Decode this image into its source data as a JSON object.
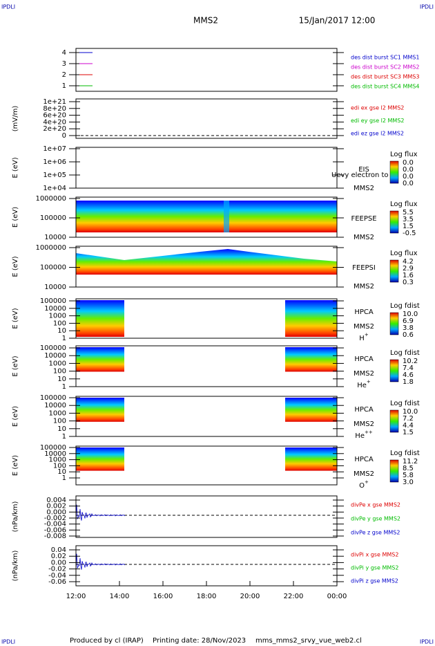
{
  "header": {
    "corner_left": "IPDLI",
    "corner_right": "IPDLI",
    "title": "MMS2",
    "date": "15/Jan/2017 12:00"
  },
  "panels": [
    {
      "yticks": [
        "4",
        "3",
        "2",
        "1"
      ],
      "legend": [
        {
          "text": "des dist burst SC1 MMS1",
          "color": "#0000cc"
        },
        {
          "text": "des dist burst SC2 MMS2",
          "color": "#cc00cc"
        },
        {
          "text": "des dist burst SC3 MMS3",
          "color": "#dd0000"
        },
        {
          "text": "des dist burst SC4 MMS4",
          "color": "#00bb00"
        }
      ]
    },
    {
      "ylabel": "(mV/m)",
      "yticks": [
        "1e+21",
        "8e+20",
        "6e+20",
        "4e+20",
        "2e+20",
        "0"
      ],
      "legend": [
        {
          "text": "edi ex gse l2 MMS2",
          "color": "#dd0000"
        },
        {
          "text": "edi ey gse l2 MMS2",
          "color": "#00bb00"
        },
        {
          "text": "edi ez gse l2 MMS2",
          "color": "#0000cc"
        }
      ]
    },
    {
      "ylabel": "E (eV)",
      "yticks": [
        "1e+07",
        "1e+06",
        "1e+05",
        "1e+04"
      ],
      "side": [
        "EIS",
        "MMS2"
      ],
      "overlay": "Uevy electron to",
      "cbar": {
        "title": "Log flux",
        "ticks": [
          "0.0",
          "0.0",
          "0.0",
          "0.0"
        ]
      }
    },
    {
      "ylabel": "E (eV)",
      "yticks": [
        "1000000",
        "100000",
        "10000"
      ],
      "side": [
        "FEEPSE",
        "MMS2"
      ],
      "cbar": {
        "title": "Log flux",
        "ticks": [
          "5.5",
          "3.5",
          "1.5",
          "-0.5"
        ]
      }
    },
    {
      "ylabel": "E (eV)",
      "yticks": [
        "1000000",
        "100000",
        "10000"
      ],
      "side": [
        "FEEPSI",
        "MMS2"
      ],
      "cbar": {
        "title": "Log flux",
        "ticks": [
          "4.2",
          "2.9",
          "1.6",
          "0.3"
        ]
      }
    },
    {
      "ylabel": "E (eV)",
      "yticks": [
        "100000",
        "10000",
        "1000",
        "100",
        "10",
        "1"
      ],
      "side": [
        "HPCA",
        "MMS2"
      ],
      "species": {
        "base": "H",
        "sup": "+"
      },
      "cbar": {
        "title": "Log fdist",
        "ticks": [
          "10.0",
          "6.9",
          "3.8",
          "0.6"
        ]
      }
    },
    {
      "ylabel": "E (eV)",
      "yticks": [
        "100000",
        "10000",
        "1000",
        "100",
        "10",
        "1"
      ],
      "side": [
        "HPCA",
        "MMS2"
      ],
      "species": {
        "base": "He",
        "sup": "+"
      },
      "cbar": {
        "title": "Log fdist",
        "ticks": [
          "10.2",
          "7.4",
          "4.6",
          "1.8"
        ]
      }
    },
    {
      "ylabel": "E (eV)",
      "yticks": [
        "100000",
        "10000",
        "1000",
        "100",
        "10",
        "1"
      ],
      "side": [
        "HPCA",
        "MMS2"
      ],
      "species": {
        "base": "He",
        "sup": "++"
      },
      "cbar": {
        "title": "Log fdist",
        "ticks": [
          "10.0",
          "7.2",
          "4.4",
          "1.5"
        ]
      }
    },
    {
      "ylabel": "E (eV)",
      "yticks": [
        "100000",
        "10000",
        "1000",
        "100",
        "10",
        "1"
      ],
      "side": [
        "HPCA",
        "MMS2"
      ],
      "species": {
        "base": "O",
        "sup": "+"
      },
      "cbar": {
        "title": "Log fdist",
        "ticks": [
          "11.2",
          "8.5",
          "5.8",
          "3.0"
        ]
      }
    },
    {
      "ylabel": "(nPa/km)",
      "yticks": [
        "0.004",
        "0.002",
        "0.000",
        "-0.002",
        "-0.004",
        "-0.006",
        "-0.008"
      ],
      "legend": [
        {
          "text": "divPe x gse MMS2",
          "color": "#dd0000"
        },
        {
          "text": "divPe y gse MMS2",
          "color": "#00bb00"
        },
        {
          "text": "divPe z gse MMS2",
          "color": "#0000cc"
        }
      ]
    },
    {
      "ylabel": "(nPa/km)",
      "yticks": [
        "0.04",
        "0.02",
        "0.00",
        "-0.02",
        "-0.04",
        "-0.06"
      ],
      "legend": [
        {
          "text": "divPi x gse MMS2",
          "color": "#dd0000"
        },
        {
          "text": "divPi y gse MMS2",
          "color": "#00bb00"
        },
        {
          "text": "divPi z gse MMS2",
          "color": "#0000cc"
        }
      ]
    }
  ],
  "xticks": [
    "12:00",
    "14:00",
    "16:00",
    "18:00",
    "20:00",
    "22:00",
    "00:00"
  ],
  "footer": {
    "left": "IPDLI",
    "right": "IPDLI",
    "produced": "Produced by cl (IRAP)",
    "printing": "Printing date: 28/Nov/2023",
    "file": "mms_mms2_srvy_vue_web2.cl"
  }
}
